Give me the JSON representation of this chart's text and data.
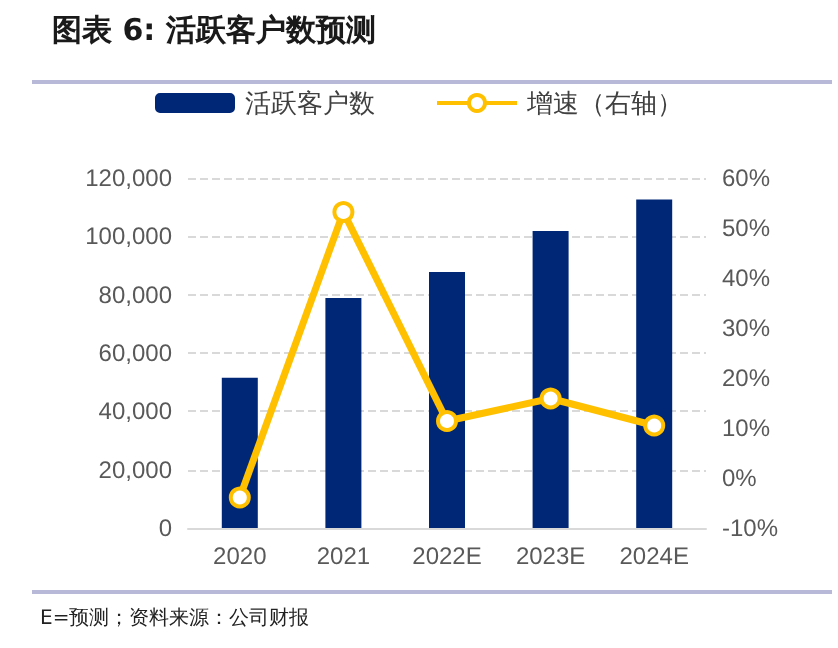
{
  "chart_data": {
    "type": "bar",
    "title": "图表 6: 活跃客户数预测",
    "annotations": [
      "E=预测；资料来源：公司财报"
    ],
    "categories": [
      "2020",
      "2021",
      "2022E",
      "2023E",
      "2024E"
    ],
    "series": [
      {
        "name": "活跃客户数",
        "color": "#002776",
        "values": [
          51500,
          78900,
          87800,
          101800,
          112600
        ]
      },
      {
        "name": "增速（右轴）",
        "type": "line",
        "axis": "y2",
        "color": "#ffc000",
        "marker": "circle",
        "values": [
          -3.9,
          53.2,
          11.4,
          15.9,
          10.5
        ]
      }
    ],
    "ylim": [
      0,
      120000
    ],
    "yticks": [
      0,
      {
        "value": 20000,
        "label": "20,000"
      },
      {
        "value": 40000,
        "label": "40,000"
      },
      {
        "value": 60000,
        "label": "60,000"
      },
      {
        "value": 80000,
        "label": "80,000"
      },
      {
        "value": 100000,
        "label": "100,000"
      },
      {
        "value": 120000,
        "label": "120,000"
      }
    ],
    "y2lim": [
      -10,
      60
    ],
    "y2ticks": [
      {
        "value": -10,
        "label": "-10%"
      },
      {
        "value": 0,
        "label": "0%"
      },
      {
        "value": 10,
        "label": "10%"
      },
      {
        "value": 20,
        "label": "20%"
      },
      {
        "value": 30,
        "label": "30%"
      },
      {
        "value": 40,
        "label": "40%"
      },
      {
        "value": 50,
        "label": "50%"
      },
      {
        "value": 60,
        "label": "60%"
      }
    ],
    "grid": "y",
    "legend": "top"
  }
}
